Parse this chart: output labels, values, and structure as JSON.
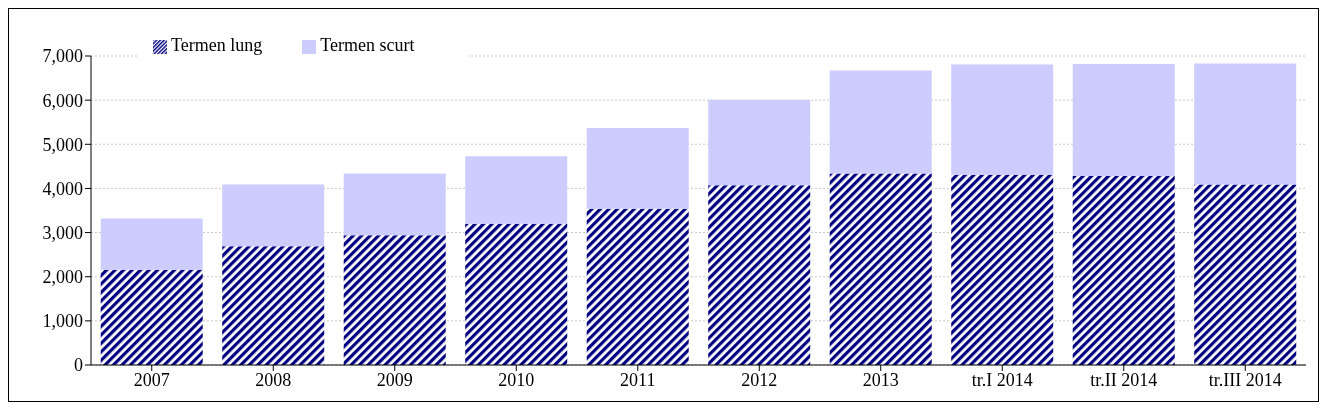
{
  "chart_data": {
    "type": "bar",
    "stacked": true,
    "categories": [
      "2007",
      "2008",
      "2009",
      "2010",
      "2011",
      "2012",
      "2013",
      "tr.I 2014",
      "tr.II 2014",
      "tr.III 2014"
    ],
    "series": [
      {
        "name": "Termen lung",
        "color": "#000080",
        "values": [
          2160,
          2690,
          2940,
          3200,
          3540,
          4070,
          4340,
          4310,
          4280,
          4090
        ]
      },
      {
        "name": "Termen scurt",
        "color": "#ccccff",
        "values": [
          1160,
          1400,
          1400,
          1530,
          1830,
          1940,
          2330,
          2500,
          2540,
          2740
        ]
      }
    ],
    "ylim": [
      0,
      7000
    ],
    "yticks": [
      {
        "value": 0,
        "label": "0"
      },
      {
        "value": 1000,
        "label": "1,000"
      },
      {
        "value": 2000,
        "label": "2,000"
      },
      {
        "value": 3000,
        "label": "3,000"
      },
      {
        "value": 4000,
        "label": "4,000"
      },
      {
        "value": 5000,
        "label": "5,000"
      },
      {
        "value": 6000,
        "label": "6,000"
      },
      {
        "value": 7000,
        "label": "7,000"
      }
    ],
    "grid": "y",
    "legend": "top left"
  }
}
